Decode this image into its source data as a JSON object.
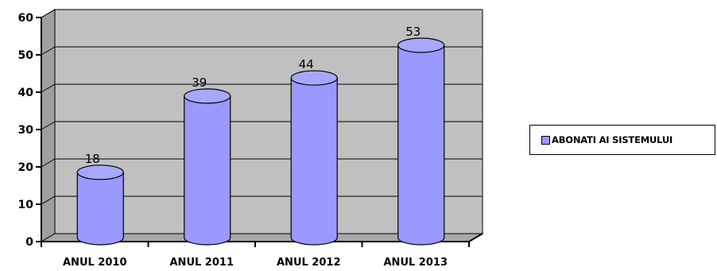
{
  "chart_data": {
    "type": "bar",
    "categories": [
      "ANUL 2010",
      "ANUL 2011",
      "ANUL 2012",
      "ANUL 2013"
    ],
    "series": [
      {
        "name": "ABONATI AI SISTEMULUI",
        "values": [
          18,
          39,
          44,
          53
        ]
      }
    ],
    "data_labels": [
      "18",
      "39",
      "44",
      "53"
    ],
    "ylim": [
      0,
      60
    ],
    "yticks": [
      0,
      10,
      20,
      30,
      40,
      50,
      60
    ],
    "grid": true,
    "legend_position": "right",
    "bar_shape": "cylinder",
    "colors": {
      "bar": "#9999ff",
      "wall": "#c0c0c0",
      "floor": "#a8a8a8",
      "grid": "#000000"
    }
  },
  "legend": {
    "label": "ABONATI AI SISTEMULUI"
  }
}
